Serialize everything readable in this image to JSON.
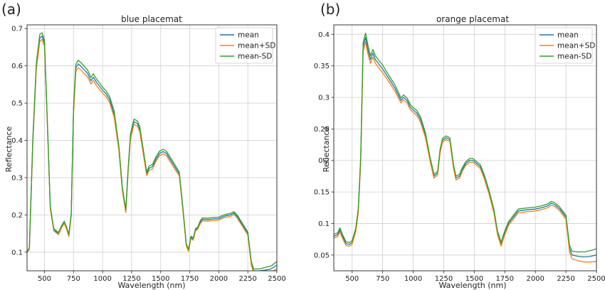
{
  "chart_data": [
    {
      "type": "line",
      "panel_label": "(a)",
      "title": "blue placemat",
      "xlabel": "Wavelength (nm)",
      "ylabel": "Reflectance",
      "xlim": [
        350,
        2500
      ],
      "ylim": [
        0.05,
        0.71
      ],
      "xticks": [
        500,
        750,
        1000,
        1250,
        1500,
        1750,
        2000,
        2250,
        2500
      ],
      "yticks": [
        0.1,
        0.2,
        0.3,
        0.4,
        0.5,
        0.6,
        0.7
      ],
      "grid": true,
      "legend_position": "top-right",
      "colors": {
        "mean": "#1f77b4",
        "mean+SD": "#ff7f0e",
        "mean-SD": "#2ca02c"
      },
      "x": [
        350,
        370,
        400,
        430,
        460,
        480,
        500,
        530,
        550,
        580,
        600,
        620,
        650,
        670,
        690,
        710,
        730,
        750,
        770,
        790,
        810,
        840,
        870,
        900,
        920,
        950,
        975,
        1000,
        1030,
        1060,
        1100,
        1140,
        1170,
        1200,
        1220,
        1240,
        1270,
        1300,
        1320,
        1350,
        1380,
        1400,
        1430,
        1460,
        1490,
        1520,
        1550,
        1580,
        1620,
        1660,
        1690,
        1720,
        1740,
        1760,
        1780,
        1800,
        1820,
        1840,
        1860,
        1900,
        1950,
        2000,
        2050,
        2100,
        2130,
        2160,
        2200,
        2250,
        2280,
        2300,
        2350,
        2400,
        2450,
        2500
      ],
      "series": [
        {
          "name": "mean",
          "values": [
            0.1,
            0.11,
            0.4,
            0.6,
            0.675,
            0.68,
            0.66,
            0.4,
            0.22,
            0.16,
            0.155,
            0.15,
            0.17,
            0.18,
            0.165,
            0.145,
            0.2,
            0.48,
            0.595,
            0.605,
            0.6,
            0.59,
            0.58,
            0.56,
            0.57,
            0.555,
            0.545,
            0.535,
            0.525,
            0.51,
            0.47,
            0.38,
            0.27,
            0.21,
            0.32,
            0.41,
            0.45,
            0.445,
            0.43,
            0.37,
            0.31,
            0.325,
            0.33,
            0.35,
            0.365,
            0.37,
            0.365,
            0.35,
            0.33,
            0.31,
            0.22,
            0.12,
            0.105,
            0.14,
            0.135,
            0.16,
            0.165,
            0.18,
            0.188,
            0.187,
            0.189,
            0.19,
            0.197,
            0.2,
            0.205,
            0.195,
            0.175,
            0.15,
            0.07,
            0.05,
            0.05,
            0.052,
            0.055,
            0.065
          ]
        },
        {
          "name": "mean+SD",
          "values": [
            0.1,
            0.107,
            0.393,
            0.592,
            0.665,
            0.671,
            0.652,
            0.395,
            0.216,
            0.157,
            0.152,
            0.147,
            0.167,
            0.177,
            0.162,
            0.142,
            0.196,
            0.471,
            0.585,
            0.595,
            0.59,
            0.58,
            0.571,
            0.551,
            0.561,
            0.546,
            0.536,
            0.527,
            0.517,
            0.502,
            0.462,
            0.374,
            0.265,
            0.206,
            0.315,
            0.403,
            0.443,
            0.438,
            0.423,
            0.364,
            0.305,
            0.319,
            0.324,
            0.344,
            0.359,
            0.364,
            0.359,
            0.344,
            0.324,
            0.305,
            0.216,
            0.117,
            0.102,
            0.137,
            0.132,
            0.157,
            0.162,
            0.176,
            0.184,
            0.183,
            0.185,
            0.186,
            0.193,
            0.196,
            0.201,
            0.191,
            0.171,
            0.146,
            0.065,
            0.045,
            0.045,
            0.045,
            0.047,
            0.055
          ]
        },
        {
          "name": "mean-SD",
          "values": [
            0.1,
            0.113,
            0.407,
            0.608,
            0.685,
            0.689,
            0.668,
            0.405,
            0.224,
            0.163,
            0.158,
            0.153,
            0.173,
            0.183,
            0.168,
            0.148,
            0.204,
            0.489,
            0.605,
            0.615,
            0.61,
            0.6,
            0.589,
            0.569,
            0.579,
            0.564,
            0.554,
            0.543,
            0.533,
            0.518,
            0.478,
            0.386,
            0.275,
            0.214,
            0.325,
            0.417,
            0.457,
            0.452,
            0.437,
            0.376,
            0.315,
            0.331,
            0.336,
            0.356,
            0.371,
            0.376,
            0.371,
            0.356,
            0.336,
            0.315,
            0.224,
            0.123,
            0.108,
            0.143,
            0.138,
            0.163,
            0.168,
            0.184,
            0.192,
            0.191,
            0.193,
            0.194,
            0.201,
            0.204,
            0.209,
            0.199,
            0.179,
            0.154,
            0.075,
            0.055,
            0.055,
            0.059,
            0.063,
            0.075
          ]
        }
      ]
    },
    {
      "type": "line",
      "panel_label": "(b)",
      "title": "orange placemat",
      "xlabel": "Wavelength (nm)",
      "ylabel": "Reflectance",
      "xlim": [
        350,
        2500
      ],
      "ylim": [
        0.025,
        0.415
      ],
      "xticks": [
        500,
        750,
        1000,
        1250,
        1500,
        1750,
        2000,
        2250,
        2500
      ],
      "yticks": [
        0.05,
        0.1,
        0.15,
        0.2,
        0.25,
        0.3,
        0.35,
        0.4
      ],
      "grid": true,
      "legend_position": "top-right",
      "colors": {
        "mean": "#1f77b4",
        "mean+SD": "#ff7f0e",
        "mean-SD": "#2ca02c"
      },
      "x": [
        350,
        380,
        400,
        420,
        450,
        480,
        500,
        530,
        550,
        570,
        590,
        610,
        630,
        650,
        670,
        690,
        710,
        750,
        800,
        850,
        900,
        920,
        950,
        975,
        1000,
        1030,
        1060,
        1100,
        1140,
        1170,
        1200,
        1220,
        1240,
        1270,
        1300,
        1330,
        1350,
        1380,
        1400,
        1430,
        1460,
        1490,
        1520,
        1550,
        1580,
        1620,
        1660,
        1690,
        1720,
        1740,
        1760,
        1780,
        1800,
        1820,
        1840,
        1860,
        1900,
        1950,
        2000,
        2050,
        2100,
        2130,
        2160,
        2200,
        2250,
        2280,
        2300,
        2350,
        2400,
        2450,
        2500
      ],
      "series": [
        {
          "name": "mean",
          "values": [
            0.08,
            0.082,
            0.09,
            0.08,
            0.068,
            0.067,
            0.07,
            0.09,
            0.12,
            0.2,
            0.38,
            0.395,
            0.375,
            0.36,
            0.37,
            0.36,
            0.355,
            0.345,
            0.33,
            0.315,
            0.295,
            0.3,
            0.295,
            0.285,
            0.28,
            0.275,
            0.265,
            0.24,
            0.2,
            0.175,
            0.18,
            0.215,
            0.232,
            0.236,
            0.233,
            0.19,
            0.172,
            0.175,
            0.185,
            0.195,
            0.2,
            0.2,
            0.195,
            0.19,
            0.175,
            0.15,
            0.12,
            0.085,
            0.067,
            0.08,
            0.09,
            0.1,
            0.105,
            0.11,
            0.115,
            0.12,
            0.121,
            0.122,
            0.123,
            0.125,
            0.128,
            0.132,
            0.13,
            0.123,
            0.11,
            0.06,
            0.05,
            0.048,
            0.047,
            0.048,
            0.05
          ]
        },
        {
          "name": "mean+SD",
          "values": [
            0.077,
            0.079,
            0.087,
            0.077,
            0.065,
            0.064,
            0.067,
            0.087,
            0.116,
            0.195,
            0.373,
            0.388,
            0.368,
            0.354,
            0.364,
            0.354,
            0.349,
            0.339,
            0.325,
            0.31,
            0.291,
            0.296,
            0.291,
            0.281,
            0.276,
            0.271,
            0.261,
            0.236,
            0.197,
            0.172,
            0.177,
            0.212,
            0.229,
            0.233,
            0.23,
            0.187,
            0.169,
            0.172,
            0.182,
            0.192,
            0.197,
            0.197,
            0.192,
            0.187,
            0.172,
            0.147,
            0.117,
            0.082,
            0.064,
            0.077,
            0.087,
            0.097,
            0.102,
            0.107,
            0.112,
            0.117,
            0.118,
            0.119,
            0.12,
            0.122,
            0.125,
            0.129,
            0.127,
            0.12,
            0.107,
            0.055,
            0.044,
            0.041,
            0.039,
            0.039,
            0.04
          ]
        },
        {
          "name": "mean-SD",
          "values": [
            0.083,
            0.085,
            0.093,
            0.083,
            0.071,
            0.07,
            0.073,
            0.093,
            0.124,
            0.205,
            0.387,
            0.402,
            0.382,
            0.366,
            0.376,
            0.366,
            0.361,
            0.351,
            0.335,
            0.32,
            0.299,
            0.304,
            0.299,
            0.289,
            0.284,
            0.279,
            0.269,
            0.244,
            0.203,
            0.178,
            0.183,
            0.218,
            0.235,
            0.239,
            0.236,
            0.193,
            0.175,
            0.178,
            0.188,
            0.198,
            0.203,
            0.203,
            0.198,
            0.193,
            0.178,
            0.153,
            0.123,
            0.088,
            0.07,
            0.083,
            0.093,
            0.103,
            0.108,
            0.113,
            0.118,
            0.123,
            0.124,
            0.125,
            0.126,
            0.128,
            0.131,
            0.135,
            0.133,
            0.126,
            0.113,
            0.065,
            0.056,
            0.055,
            0.055,
            0.057,
            0.06
          ]
        }
      ]
    }
  ]
}
